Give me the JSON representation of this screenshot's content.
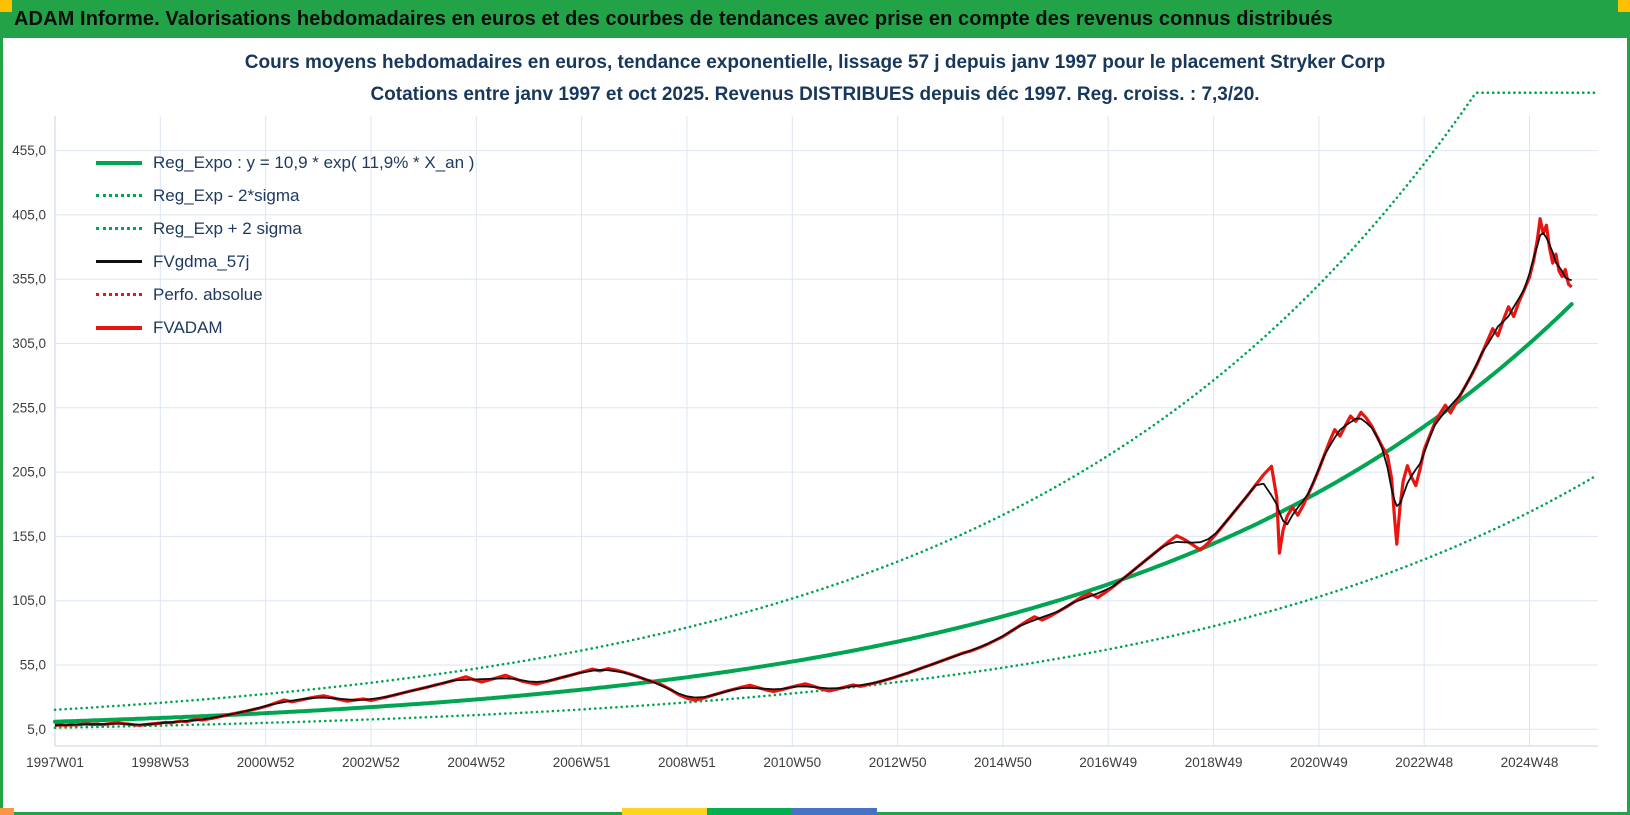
{
  "window": {
    "header_title": "ADAM Informe. Valorisations hebdomadaires en euros et des courbes de tendances avec prise en compte des revenus connus distribués",
    "colors": {
      "header_bg": "#22a347",
      "frame": "#22a347",
      "corner_accent": "#ffc000",
      "strip_orange": "#f79646",
      "strip_yellow": "#ffd41f",
      "strip_green": "#00b050",
      "strip_blue": "#4472c4"
    }
  },
  "chart_data": {
    "type": "line",
    "title_line1": "Cours moyens hebdomadaires en euros, tendance exponentielle, lissage 57 j depuis janv 1997 pour le placement Stryker Corp",
    "title_line2": "Cotations entre janv 1997 et oct 2025. Revenus DISTRIBUES depuis déc 1997. Reg. croiss. : 7,3/20.",
    "x_range": [
      1997.0,
      2026.3
    ],
    "y_range": [
      -8,
      506
    ],
    "grid": true,
    "legend_position": "top-left",
    "colors": {
      "grid": "#dce5f2",
      "axis": "#c6d3e8",
      "reg": "#00a551",
      "fvadam": "#ea1510",
      "fvgdma": "#0f0f0f",
      "tick_text": "#3c3c3c"
    },
    "y_ticks": [
      {
        "label": "455,0",
        "value": 455
      },
      {
        "label": "405,0",
        "value": 405
      },
      {
        "label": "355,0",
        "value": 355
      },
      {
        "label": "305,0",
        "value": 305
      },
      {
        "label": "255,0",
        "value": 255
      },
      {
        "label": "205,0",
        "value": 205
      },
      {
        "label": "155,0",
        "value": 155
      },
      {
        "label": "105,0",
        "value": 105
      },
      {
        "label": "55,0",
        "value": 55
      },
      {
        "label": "5,0",
        "value": 5
      }
    ],
    "x_ticks": [
      {
        "label": "1997W01",
        "year": 1997
      },
      {
        "label": "1998W53",
        "year": 1999
      },
      {
        "label": "2000W52",
        "year": 2001
      },
      {
        "label": "2002W52",
        "year": 2003
      },
      {
        "label": "2004W52",
        "year": 2005
      },
      {
        "label": "2006W51",
        "year": 2007
      },
      {
        "label": "2008W51",
        "year": 2009
      },
      {
        "label": "2010W50",
        "year": 2011
      },
      {
        "label": "2012W50",
        "year": 2013
      },
      {
        "label": "2014W50",
        "year": 2015
      },
      {
        "label": "2016W49",
        "year": 2017
      },
      {
        "label": "2018W49",
        "year": 2019
      },
      {
        "label": "2020W49",
        "year": 2021
      },
      {
        "label": "2022W48",
        "year": 2023
      },
      {
        "label": "2024W48",
        "year": 2025
      }
    ],
    "legend": [
      {
        "label": "Reg_Expo : y = 10,9 * exp( 11,9% *  X_an )",
        "color": "#00a551",
        "line": "solid-thick"
      },
      {
        "label": "Reg_Exp - 2*sigma",
        "color": "#00a551",
        "line": "dotted"
      },
      {
        "label": "Reg_Exp + 2 sigma",
        "color": "#00a551",
        "line": "dotted"
      },
      {
        "label": "FVgdma_57j",
        "color": "#0f0f0f",
        "line": "solid"
      },
      {
        "label": "Perfo. absolue",
        "color": "#ea1510",
        "line": "dotted"
      },
      {
        "label": "FVADAM",
        "color": "#ea1510",
        "line": "solid-thick"
      }
    ],
    "regression": {
      "coef": 10.9,
      "rate": 0.119,
      "x0": 1997.0,
      "x_end": 2025.83,
      "upper_mult": 1.85,
      "lower_mult": 0.57,
      "clamp": 500
    },
    "smoothed": {
      "name": "FVgdma_57j",
      "window": 5,
      "color": "#0f0f0f"
    },
    "series": [
      {
        "name": "FVADAM",
        "color": "#ea1510",
        "points": [
          [
            1997.0,
            8.0
          ],
          [
            1997.1,
            8.4
          ],
          [
            1997.2,
            8.1
          ],
          [
            1997.3,
            8.6
          ],
          [
            1997.4,
            8.3
          ],
          [
            1997.5,
            8.9
          ],
          [
            1997.6,
            9.2
          ],
          [
            1997.7,
            8.8
          ],
          [
            1997.8,
            9.0
          ],
          [
            1997.9,
            8.6
          ],
          [
            1998.0,
            9.1
          ],
          [
            1998.1,
            9.6
          ],
          [
            1998.2,
            10.0
          ],
          [
            1998.3,
            9.4
          ],
          [
            1998.4,
            9.0
          ],
          [
            1998.5,
            8.5
          ],
          [
            1998.6,
            8.1
          ],
          [
            1998.7,
            8.6
          ],
          [
            1998.8,
            9.0
          ],
          [
            1998.9,
            9.4
          ],
          [
            1999.0,
            9.8
          ],
          [
            1999.1,
            10.4
          ],
          [
            1999.2,
            10.0
          ],
          [
            1999.3,
            10.8
          ],
          [
            1999.4,
            11.4
          ],
          [
            1999.5,
            11.0
          ],
          [
            1999.6,
            12.0
          ],
          [
            1999.7,
            12.6
          ],
          [
            1999.8,
            12.2
          ],
          [
            1999.9,
            13.0
          ],
          [
            2000.0,
            13.6
          ],
          [
            2000.15,
            15.0
          ],
          [
            2000.3,
            16.4
          ],
          [
            2000.45,
            17.6
          ],
          [
            2000.6,
            18.8
          ],
          [
            2000.75,
            20.2
          ],
          [
            2000.9,
            21.6
          ],
          [
            2001.05,
            23.4
          ],
          [
            2001.2,
            25.6
          ],
          [
            2001.35,
            27.8
          ],
          [
            2001.5,
            26.4
          ],
          [
            2001.65,
            27.6
          ],
          [
            2001.8,
            29.0
          ],
          [
            2001.95,
            30.2
          ],
          [
            2002.1,
            31.0
          ],
          [
            2002.25,
            29.6
          ],
          [
            2002.4,
            28.2
          ],
          [
            2002.55,
            26.8
          ],
          [
            2002.7,
            27.8
          ],
          [
            2002.85,
            28.6
          ],
          [
            2003.0,
            27.4
          ],
          [
            2003.15,
            28.8
          ],
          [
            2003.3,
            30.2
          ],
          [
            2003.45,
            31.6
          ],
          [
            2003.6,
            33.2
          ],
          [
            2003.75,
            34.8
          ],
          [
            2003.9,
            36.2
          ],
          [
            2004.05,
            37.6
          ],
          [
            2004.2,
            39.2
          ],
          [
            2004.35,
            40.6
          ],
          [
            2004.5,
            42.2
          ],
          [
            2004.65,
            44.0
          ],
          [
            2004.8,
            45.8
          ],
          [
            2004.95,
            43.6
          ],
          [
            2005.1,
            41.8
          ],
          [
            2005.25,
            43.4
          ],
          [
            2005.4,
            45.2
          ],
          [
            2005.55,
            47.0
          ],
          [
            2005.7,
            44.8
          ],
          [
            2005.85,
            42.6
          ],
          [
            2006.0,
            41.2
          ],
          [
            2006.15,
            40.2
          ],
          [
            2006.3,
            41.8
          ],
          [
            2006.45,
            43.4
          ],
          [
            2006.6,
            45.0
          ],
          [
            2006.75,
            46.6
          ],
          [
            2006.9,
            48.2
          ],
          [
            2007.05,
            50.0
          ],
          [
            2007.2,
            51.8
          ],
          [
            2007.35,
            50.4
          ],
          [
            2007.5,
            52.2
          ],
          [
            2007.65,
            51.0
          ],
          [
            2007.8,
            49.4
          ],
          [
            2007.95,
            47.6
          ],
          [
            2008.1,
            45.4
          ],
          [
            2008.25,
            43.2
          ],
          [
            2008.4,
            41.6
          ],
          [
            2008.55,
            39.0
          ],
          [
            2008.7,
            35.6
          ],
          [
            2008.85,
            31.8
          ],
          [
            2009.0,
            29.2
          ],
          [
            2009.15,
            27.6
          ],
          [
            2009.3,
            29.0
          ],
          [
            2009.45,
            31.0
          ],
          [
            2009.6,
            32.8
          ],
          [
            2009.75,
            34.6
          ],
          [
            2009.9,
            36.2
          ],
          [
            2010.05,
            37.8
          ],
          [
            2010.2,
            39.2
          ],
          [
            2010.35,
            37.4
          ],
          [
            2010.5,
            35.6
          ],
          [
            2010.65,
            34.4
          ],
          [
            2010.8,
            35.8
          ],
          [
            2010.95,
            37.4
          ],
          [
            2011.1,
            39.0
          ],
          [
            2011.25,
            40.4
          ],
          [
            2011.4,
            38.6
          ],
          [
            2011.55,
            36.4
          ],
          [
            2011.7,
            34.8
          ],
          [
            2011.85,
            36.2
          ],
          [
            2012.0,
            37.8
          ],
          [
            2012.15,
            39.4
          ],
          [
            2012.3,
            38.4
          ],
          [
            2012.45,
            39.8
          ],
          [
            2012.6,
            41.4
          ],
          [
            2012.75,
            43.0
          ],
          [
            2012.9,
            44.8
          ],
          [
            2013.05,
            46.8
          ],
          [
            2013.2,
            48.8
          ],
          [
            2013.35,
            51.0
          ],
          [
            2013.5,
            53.2
          ],
          [
            2013.65,
            55.4
          ],
          [
            2013.8,
            57.6
          ],
          [
            2013.95,
            59.8
          ],
          [
            2014.1,
            62.2
          ],
          [
            2014.25,
            64.4
          ],
          [
            2014.4,
            66.0
          ],
          [
            2014.55,
            68.4
          ],
          [
            2014.7,
            71.0
          ],
          [
            2014.85,
            74.0
          ],
          [
            2015.0,
            77.0
          ],
          [
            2015.15,
            81.0
          ],
          [
            2015.3,
            85.0
          ],
          [
            2015.45,
            89.0
          ],
          [
            2015.6,
            92.5
          ],
          [
            2015.75,
            90.0
          ],
          [
            2015.9,
            93.0
          ],
          [
            2016.05,
            96.5
          ],
          [
            2016.2,
            100.0
          ],
          [
            2016.35,
            104.0
          ],
          [
            2016.5,
            108.0
          ],
          [
            2016.65,
            110.5
          ],
          [
            2016.8,
            107.5
          ],
          [
            2016.95,
            111.5
          ],
          [
            2017.1,
            116.0
          ],
          [
            2017.25,
            121.0
          ],
          [
            2017.4,
            126.0
          ],
          [
            2017.55,
            131.0
          ],
          [
            2017.7,
            136.0
          ],
          [
            2017.85,
            141.0
          ],
          [
            2018.0,
            146.0
          ],
          [
            2018.15,
            151.0
          ],
          [
            2018.3,
            155.5
          ],
          [
            2018.45,
            152.5
          ],
          [
            2018.6,
            148.5
          ],
          [
            2018.75,
            144.5
          ],
          [
            2018.9,
            150.0
          ],
          [
            2019.05,
            157.0
          ],
          [
            2019.2,
            164.5
          ],
          [
            2019.35,
            172.0
          ],
          [
            2019.5,
            179.5
          ],
          [
            2019.65,
            187.0
          ],
          [
            2019.8,
            195.0
          ],
          [
            2019.95,
            203.0
          ],
          [
            2020.1,
            209.5
          ],
          [
            2020.2,
            185.0
          ],
          [
            2020.25,
            142.0
          ],
          [
            2020.32,
            160.0
          ],
          [
            2020.4,
            171.0
          ],
          [
            2020.5,
            177.5
          ],
          [
            2020.6,
            171.5
          ],
          [
            2020.7,
            179.0
          ],
          [
            2020.8,
            188.0
          ],
          [
            2020.9,
            197.0
          ],
          [
            2021.0,
            207.0
          ],
          [
            2021.1,
            218.0
          ],
          [
            2021.2,
            228.5
          ],
          [
            2021.3,
            238.0
          ],
          [
            2021.4,
            233.0
          ],
          [
            2021.5,
            241.0
          ],
          [
            2021.6,
            248.5
          ],
          [
            2021.7,
            244.5
          ],
          [
            2021.8,
            251.5
          ],
          [
            2021.9,
            247.0
          ],
          [
            2022.0,
            241.0
          ],
          [
            2022.1,
            233.0
          ],
          [
            2022.2,
            225.0
          ],
          [
            2022.3,
            218.0
          ],
          [
            2022.38,
            200.0
          ],
          [
            2022.44,
            168.0
          ],
          [
            2022.48,
            149.0
          ],
          [
            2022.54,
            178.0
          ],
          [
            2022.6,
            198.0
          ],
          [
            2022.68,
            210.0
          ],
          [
            2022.76,
            201.0
          ],
          [
            2022.84,
            194.5
          ],
          [
            2022.92,
            207.0
          ],
          [
            2023.0,
            222.5
          ],
          [
            2023.1,
            233.0
          ],
          [
            2023.2,
            243.0
          ],
          [
            2023.3,
            250.5
          ],
          [
            2023.4,
            257.0
          ],
          [
            2023.5,
            251.0
          ],
          [
            2023.6,
            258.5
          ],
          [
            2023.7,
            266.0
          ],
          [
            2023.8,
            273.0
          ],
          [
            2023.9,
            280.5
          ],
          [
            2024.0,
            288.5
          ],
          [
            2024.1,
            297.5
          ],
          [
            2024.2,
            307.0
          ],
          [
            2024.3,
            316.5
          ],
          [
            2024.4,
            311.0
          ],
          [
            2024.5,
            323.0
          ],
          [
            2024.6,
            333.5
          ],
          [
            2024.7,
            326.0
          ],
          [
            2024.8,
            337.5
          ],
          [
            2024.9,
            347.0
          ],
          [
            2025.0,
            356.5
          ],
          [
            2025.08,
            370.0
          ],
          [
            2025.15,
            386.0
          ],
          [
            2025.2,
            402.0
          ],
          [
            2025.26,
            390.5
          ],
          [
            2025.32,
            397.0
          ],
          [
            2025.38,
            379.0
          ],
          [
            2025.44,
            367.5
          ],
          [
            2025.5,
            374.5
          ],
          [
            2025.56,
            361.5
          ],
          [
            2025.62,
            357.0
          ],
          [
            2025.68,
            362.5
          ],
          [
            2025.74,
            351.0
          ],
          [
            2025.8,
            349.0
          ]
        ]
      }
    ]
  }
}
